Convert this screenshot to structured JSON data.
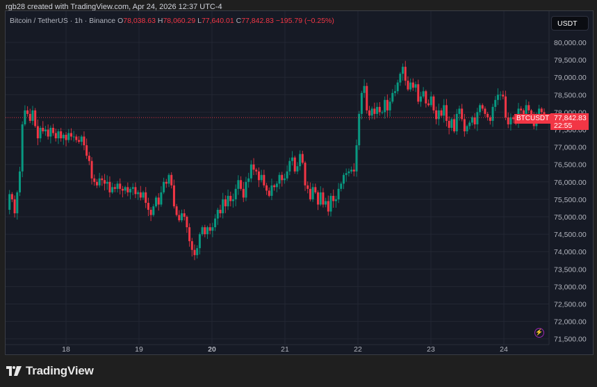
{
  "header": {
    "credit": "rgb28 created with TradingView.com, Apr 24, 2026 12:37 UTC-4"
  },
  "legend": {
    "symbol": "Bitcoin / TetherUS · 1h · Binance",
    "open_label": "O",
    "open": "78,038.63",
    "high_label": "H",
    "high": "78,060.29",
    "low_label": "L",
    "low": "77,640.01",
    "close_label": "C",
    "close": "77,842.83",
    "change": "−195.79 (−0.25%)"
  },
  "currency_button": "USDT",
  "price_tag": {
    "symbol": "BTCUSDT",
    "price": "77,842.83",
    "countdown": "22:55"
  },
  "branding": {
    "logo_text": "TradingView"
  },
  "colors": {
    "background": "#161a25",
    "up": "#089981",
    "down": "#f23645",
    "grid": "#232733",
    "axis_text": "#b2b5be"
  },
  "chart_data": {
    "type": "candlestick",
    "title": "Bitcoin / TetherUS · 1h · Binance",
    "xlabel": "",
    "ylabel": "USDT",
    "ylim": [
      71500,
      80000
    ],
    "grid": true,
    "legend_position": "top-left",
    "y_ticks": [
      "80,000.00",
      "79,500.00",
      "79,000.00",
      "78,500.00",
      "78,000.00",
      "77,500.00",
      "77,000.00",
      "76,500.00",
      "76,000.00",
      "75,500.00",
      "75,000.00",
      "74,500.00",
      "74,000.00",
      "73,500.00",
      "73,000.00",
      "72,500.00",
      "72,000.00",
      "71,500.00"
    ],
    "x_ticks": [
      "18",
      "19",
      "20",
      "21",
      "22",
      "23",
      "24"
    ],
    "last_price": 77842.83,
    "closes": [
      75200,
      75650,
      75500,
      75100,
      75700,
      76300,
      77650,
      78050,
      77950,
      77750,
      78050,
      77600,
      77250,
      77550,
      77450,
      77500,
      77300,
      77550,
      77400,
      77250,
      77450,
      77250,
      77350,
      77200,
      77400,
      77300,
      77300,
      77200,
      77150,
      77300,
      77050,
      76750,
      76600,
      76100,
      76000,
      75900,
      76100,
      76050,
      75950,
      76000,
      75700,
      75850,
      75800,
      75950,
      75800,
      75750,
      75850,
      75700,
      75800,
      75850,
      75650,
      75700,
      75550,
      75700,
      75400,
      75200,
      75050,
      75300,
      75550,
      75350,
      75700,
      76000,
      75950,
      76200,
      75900,
      75300,
      75050,
      74900,
      75100,
      75000,
      74700,
      74300,
      74050,
      73900,
      74100,
      74500,
      74700,
      74500,
      74700,
      74600,
      74700,
      74950,
      75200,
      75100,
      75500,
      75300,
      75600,
      75450,
      75500,
      75800,
      76050,
      75800,
      75550,
      76000,
      76100,
      76500,
      76350,
      76300,
      76050,
      76200,
      75900,
      75750,
      75600,
      75900,
      75850,
      75950,
      76200,
      76050,
      76100,
      76300,
      76600,
      76700,
      76300,
      76450,
      76800,
      76550,
      75900,
      75800,
      75500,
      75850,
      75700,
      75350,
      75700,
      75350,
      75450,
      75150,
      75600,
      75450,
      75500,
      75800,
      75950,
      76200,
      76250,
      76300,
      76350,
      76300,
      77050,
      77950,
      78550,
      78750,
      78050,
      77900,
      78100,
      77950,
      78150,
      78000,
      78000,
      78350,
      78050,
      78300,
      78550,
      78600,
      78850,
      79100,
      79300,
      78900,
      78650,
      78850,
      78700,
      78800,
      78300,
      78450,
      78600,
      78250,
      78200,
      78450,
      78050,
      77800,
      78050,
      77900,
      78200,
      77750,
      77550,
      77800,
      77450,
      77950,
      78100,
      77800,
      77450,
      77600,
      77700,
      77850,
      77650,
      78000,
      78200,
      78100,
      77950,
      77850,
      77750,
      78150,
      78350,
      78500,
      78500,
      78450,
      77850,
      77650,
      77850,
      77800,
      77700,
      78100,
      78050,
      77950,
      78200,
      78050,
      77850,
      77600,
      77950,
      78100,
      78000,
      77842.83
    ]
  }
}
